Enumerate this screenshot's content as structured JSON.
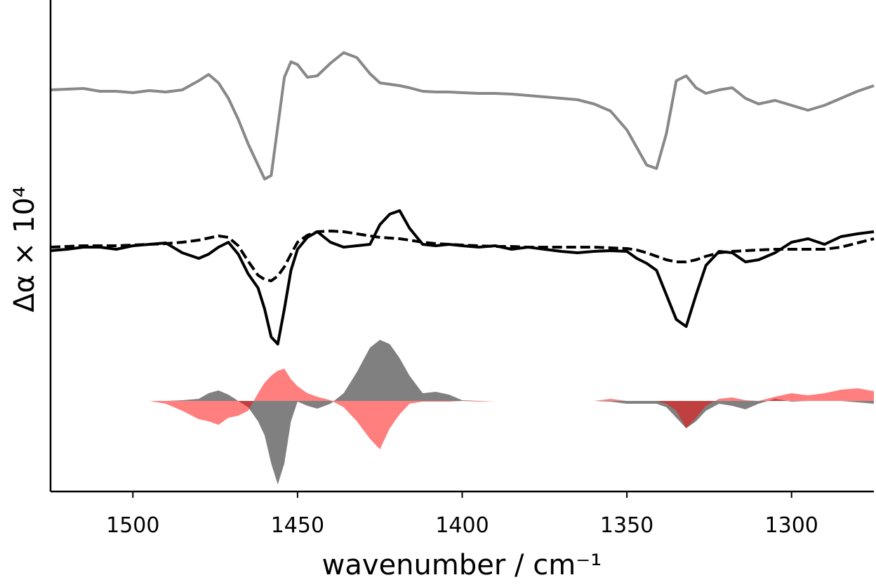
{
  "chart_data": {
    "type": "line",
    "xlabel": "wavenumber / cm⁻¹",
    "ylabel": "Δα × 10⁴",
    "xlim": [
      1525,
      1275
    ],
    "ylim": [
      0,
      700
    ],
    "xticks": [
      1500,
      1450,
      1400,
      1350,
      1300
    ],
    "x": [
      1525,
      1520,
      1515,
      1510,
      1505,
      1500,
      1495,
      1490,
      1485,
      1480,
      1477,
      1474,
      1471,
      1468,
      1465,
      1462,
      1460,
      1458,
      1456,
      1454,
      1452,
      1450,
      1447,
      1444,
      1440,
      1436,
      1432,
      1428,
      1425,
      1422,
      1419,
      1416,
      1412,
      1408,
      1404,
      1400,
      1395,
      1390,
      1385,
      1380,
      1375,
      1370,
      1365,
      1360,
      1355,
      1350,
      1347,
      1344,
      1341,
      1338,
      1335,
      1332,
      1329,
      1326,
      1322,
      1318,
      1314,
      1310,
      1305,
      1300,
      1295,
      1290,
      1285,
      1280,
      1275
    ],
    "series": [
      {
        "color": "#888888",
        "style": "solid",
        "values": [
          572,
          573,
          574,
          570,
          570,
          568,
          571,
          569,
          572,
          585,
          594,
          582,
          560,
          530,
          495,
          465,
          445,
          450,
          520,
          590,
          612,
          608,
          590,
          592,
          610,
          625,
          618,
          595,
          582,
          580,
          578,
          575,
          570,
          569,
          569,
          568,
          567,
          567,
          566,
          564,
          562,
          560,
          558,
          552,
          542,
          515,
          490,
          465,
          460,
          510,
          585,
          592,
          575,
          567,
          572,
          575,
          560,
          552,
          557,
          550,
          543,
          550,
          560,
          570,
          578
        ]
      },
      {
        "color": "#000000",
        "style": "solid",
        "values": [
          343,
          345,
          348,
          348,
          345,
          350,
          352,
          354,
          340,
          332,
          338,
          348,
          355,
          338,
          310,
          290,
          260,
          220,
          210,
          260,
          315,
          345,
          362,
          370,
          355,
          348,
          350,
          352,
          380,
          395,
          400,
          375,
          352,
          350,
          352,
          350,
          348,
          350,
          345,
          348,
          345,
          342,
          340,
          342,
          343,
          342,
          332,
          325,
          315,
          280,
          245,
          235,
          280,
          322,
          342,
          340,
          327,
          330,
          340,
          355,
          360,
          352,
          363,
          367,
          370
        ]
      },
      {
        "color": "#000000",
        "style": "dashed",
        "values": [
          348,
          349,
          350,
          350,
          350,
          351,
          352,
          353,
          355,
          358,
          361,
          364,
          362,
          350,
          328,
          308,
          302,
          300,
          307,
          320,
          338,
          355,
          365,
          370,
          371,
          370,
          367,
          364,
          362,
          361,
          360,
          358,
          355,
          353,
          352,
          351,
          350,
          349,
          349,
          348,
          348,
          348,
          348,
          348,
          347,
          346,
          344,
          340,
          335,
          330,
          327,
          327,
          330,
          335,
          340,
          342,
          343,
          344,
          345,
          345,
          345,
          345,
          348,
          354,
          360
        ]
      },
      {
        "color": "#808080",
        "style": "fill",
        "baseline": 129,
        "opacity": 1,
        "values": [
          129,
          129,
          129,
          129,
          129,
          129,
          129,
          129,
          130,
          132,
          140,
          144,
          138,
          129,
          120,
          100,
          80,
          40,
          10,
          40,
          100,
          128,
          122,
          118,
          125,
          140,
          170,
          205,
          216,
          210,
          190,
          165,
          140,
          142,
          138,
          130,
          129,
          129,
          129,
          129,
          129,
          129,
          129,
          129,
          128,
          125,
          125,
          125,
          125,
          120,
          105,
          90,
          100,
          115,
          125,
          122,
          117,
          125,
          132,
          128,
          129,
          129,
          129,
          127,
          125
        ]
      },
      {
        "color": "#ff0000",
        "style": "fill",
        "baseline": 129,
        "opacity": 0.5,
        "values": [
          129,
          129,
          129,
          129,
          129,
          129,
          129,
          125,
          115,
          103,
          100,
          95,
          105,
          108,
          115,
          140,
          155,
          165,
          172,
          175,
          160,
          150,
          140,
          135,
          130,
          120,
          100,
          75,
          60,
          90,
          110,
          125,
          128,
          128,
          128,
          129,
          128,
          129,
          129,
          129,
          129,
          129,
          129,
          129,
          132,
          129,
          129,
          129,
          129,
          125,
          115,
          90,
          105,
          122,
          132,
          134,
          130,
          129,
          135,
          140,
          137,
          140,
          145,
          147,
          143
        ]
      }
    ]
  }
}
